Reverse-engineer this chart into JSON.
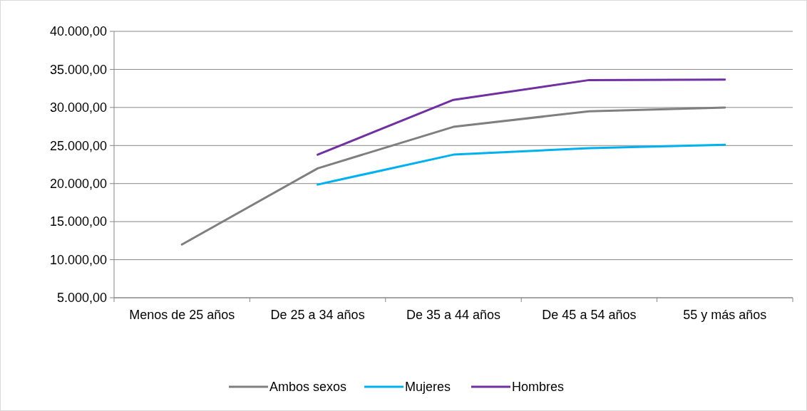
{
  "chart_data": {
    "type": "line",
    "categories": [
      "Menos de 25 años",
      "De 25 a 34 años",
      "De 35 a 44 años",
      "De 45 a 54 años",
      "55 y más años"
    ],
    "series": [
      {
        "name": "Ambos sexos",
        "color": "#7f7f7f",
        "values": [
          12000,
          22000,
          27450,
          29500,
          29980
        ]
      },
      {
        "name": "Mujeres",
        "color": "#00b0f0",
        "values": [
          null,
          19870,
          23800,
          24650,
          25100
        ]
      },
      {
        "name": "Hombres",
        "color": "#7030a0",
        "values": [
          null,
          23800,
          31000,
          33600,
          33650
        ]
      }
    ],
    "ylim": [
      5000,
      40000
    ],
    "yticks": [
      {
        "value": 5000,
        "label": "5.000,00"
      },
      {
        "value": 10000,
        "label": "10.000,00"
      },
      {
        "value": 15000,
        "label": "15.000,00"
      },
      {
        "value": 20000,
        "label": "20.000,00"
      },
      {
        "value": 25000,
        "label": "25.000,00"
      },
      {
        "value": 30000,
        "label": "30.000,00"
      },
      {
        "value": 35000,
        "label": "35.000,00"
      },
      {
        "value": 40000,
        "label": "40.000,00"
      }
    ],
    "grid": "y",
    "legend": "bottom",
    "marker": "none",
    "line_style": "solid"
  }
}
